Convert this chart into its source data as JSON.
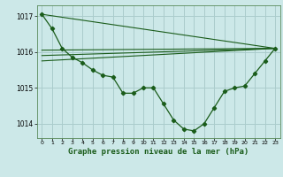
{
  "background_color": "#cce8e8",
  "grid_color": "#aacccc",
  "line_color": "#1a5c1a",
  "title": "Graphe pression niveau de la mer (hPa)",
  "title_fontsize": 6.5,
  "xlim": [
    -0.5,
    23.5
  ],
  "ylim": [
    1013.6,
    1017.3
  ],
  "yticks": [
    1014,
    1015,
    1016,
    1017
  ],
  "xticks": [
    0,
    1,
    2,
    3,
    4,
    5,
    6,
    7,
    8,
    9,
    10,
    11,
    12,
    13,
    14,
    15,
    16,
    17,
    18,
    19,
    20,
    21,
    22,
    23
  ],
  "series1_x": [
    0,
    1,
    2,
    3,
    4,
    5,
    6,
    7,
    8,
    9,
    10,
    11,
    12,
    13,
    14,
    15,
    16,
    17,
    18,
    19,
    20,
    21,
    22,
    23
  ],
  "series1_y": [
    1017.05,
    1016.65,
    1016.1,
    1015.85,
    1015.7,
    1015.5,
    1015.35,
    1015.3,
    1014.85,
    1014.85,
    1015.0,
    1015.0,
    1014.55,
    1014.1,
    1013.85,
    1013.8,
    1014.0,
    1014.45,
    1014.9,
    1015.0,
    1015.05,
    1015.4,
    1015.75,
    1016.1
  ],
  "series2_x": [
    0,
    23
  ],
  "series2_y": [
    1016.05,
    1016.1
  ],
  "series3_x": [
    0,
    23
  ],
  "series3_y": [
    1015.9,
    1016.1
  ],
  "series4_x": [
    0,
    23
  ],
  "series4_y": [
    1015.75,
    1016.1
  ],
  "series5_x": [
    0,
    23
  ],
  "series5_y": [
    1017.05,
    1016.1
  ]
}
